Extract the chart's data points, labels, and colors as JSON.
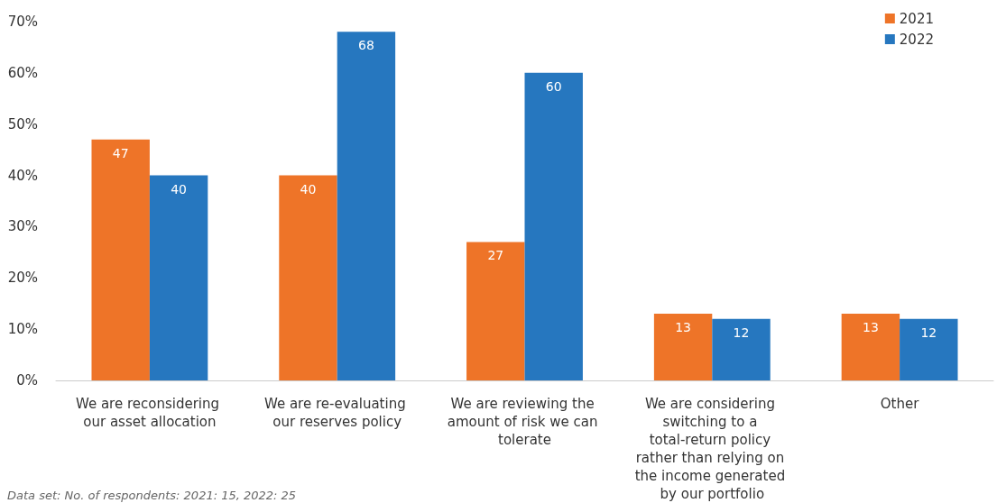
{
  "chart_data": {
    "type": "bar",
    "categories": [
      "We are reconsidering our asset allocation",
      "We are re-evaluating our reserves policy",
      "We are reviewing the amount of risk we can tolerate",
      "We are considering switching to a total-return policy rather than relying on the income generated by our portfolio",
      "Other"
    ],
    "series": [
      {
        "name": "2021",
        "color": "#ee7428",
        "values": [
          47,
          40,
          27,
          13,
          13
        ]
      },
      {
        "name": "2022",
        "color": "#2677bf",
        "values": [
          40,
          68,
          60,
          12,
          12
        ]
      }
    ],
    "ylim": [
      0,
      70
    ],
    "yticks": [
      {
        "value": 0,
        "label": "0%"
      },
      {
        "value": 10,
        "label": "10%"
      },
      {
        "value": 20,
        "label": "20%"
      },
      {
        "value": 30,
        "label": "30%"
      },
      {
        "value": 40,
        "label": "40%"
      },
      {
        "value": 50,
        "label": "50%"
      },
      {
        "value": 60,
        "label": "60%"
      },
      {
        "value": 70,
        "label": "70%"
      }
    ],
    "grid": false,
    "legend": "top right",
    "data_labels": true,
    "annotations": [
      "Data set: No. of respondents: 2021: 15, 2022: 25"
    ]
  }
}
